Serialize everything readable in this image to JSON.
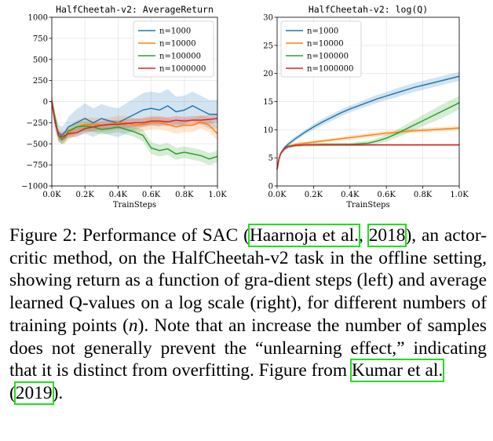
{
  "chart_data": [
    {
      "type": "line",
      "title": "HalfCheetah-v2: AverageReturn",
      "xlabel": "TrainSteps",
      "ylabel": "",
      "xlim": [
        0,
        1000
      ],
      "ylim": [
        -1000,
        1000
      ],
      "xticks": [
        0,
        200,
        400,
        600,
        800,
        1000
      ],
      "xtick_labels": [
        "0.0K",
        "0.2K",
        "0.4K",
        "0.6K",
        "0.8K",
        "1.0K"
      ],
      "yticks": [
        -1000,
        -750,
        -500,
        -250,
        0,
        250,
        500,
        750,
        1000
      ],
      "ytick_labels": [
        "−1000",
        "−750",
        "−500",
        "−250",
        "0",
        "250",
        "500",
        "750",
        "1000"
      ],
      "grid": true,
      "legend_position": "top-right",
      "x": [
        0,
        20,
        40,
        60,
        80,
        100,
        150,
        200,
        250,
        300,
        350,
        400,
        450,
        500,
        550,
        600,
        650,
        700,
        750,
        800,
        850,
        900,
        950,
        1000
      ],
      "series": [
        {
          "name": "n=1000",
          "color": "#1f77b4",
          "values": [
            0,
            -250,
            -370,
            -400,
            -360,
            -300,
            -250,
            -200,
            -250,
            -200,
            -230,
            -250,
            -200,
            -150,
            -100,
            -80,
            -100,
            -50,
            -120,
            -100,
            -50,
            -100,
            -150,
            -150
          ],
          "band": [
            100,
            100,
            100,
            100,
            100,
            120,
            160,
            180,
            170,
            170,
            170,
            170,
            180,
            190,
            200,
            200,
            200,
            200,
            180,
            170,
            170,
            170,
            170,
            170
          ]
        },
        {
          "name": "n=10000",
          "color": "#ff7f0e",
          "values": [
            0,
            -200,
            -400,
            -420,
            -420,
            -380,
            -300,
            -270,
            -270,
            -280,
            -270,
            -250,
            -250,
            -280,
            -270,
            -250,
            -250,
            -270,
            -300,
            -280,
            -280,
            -240,
            -280,
            -380
          ],
          "band": [
            80,
            80,
            80,
            80,
            80,
            80,
            80,
            80,
            80,
            80,
            80,
            80,
            80,
            80,
            80,
            80,
            80,
            80,
            80,
            80,
            80,
            80,
            80,
            80
          ]
        },
        {
          "name": "n=100000",
          "color": "#2ca02c",
          "values": [
            0,
            -200,
            -400,
            -450,
            -420,
            -350,
            -300,
            -290,
            -300,
            -330,
            -320,
            -300,
            -330,
            -360,
            -400,
            -550,
            -580,
            -560,
            -620,
            -600,
            -620,
            -640,
            -680,
            -650
          ],
          "band": [
            60,
            60,
            60,
            60,
            60,
            60,
            60,
            60,
            60,
            60,
            60,
            60,
            60,
            60,
            70,
            70,
            70,
            70,
            70,
            70,
            70,
            70,
            70,
            70
          ]
        },
        {
          "name": "n=1000000",
          "color": "#d62728",
          "values": [
            0,
            -250,
            -400,
            -420,
            -400,
            -380,
            -370,
            -320,
            -300,
            -280,
            -270,
            -270,
            -260,
            -250,
            -250,
            -230,
            -230,
            -240,
            -220,
            -230,
            -220,
            -220,
            -210,
            -200
          ],
          "band": [
            50,
            50,
            50,
            50,
            50,
            50,
            50,
            50,
            50,
            50,
            50,
            50,
            50,
            50,
            50,
            50,
            50,
            50,
            50,
            50,
            50,
            50,
            50,
            50
          ]
        }
      ]
    },
    {
      "type": "line",
      "title": "HalfCheetah-v2: log(Q)",
      "xlabel": "TrainSteps",
      "ylabel": "",
      "xlim": [
        0,
        1000
      ],
      "ylim": [
        0,
        30
      ],
      "xticks": [
        0,
        200,
        400,
        600,
        800,
        1000
      ],
      "xtick_labels": [
        "0.0K",
        "0.2K",
        "0.4K",
        "0.6K",
        "0.8K",
        "1.0K"
      ],
      "yticks": [
        0,
        5,
        10,
        15,
        20,
        25,
        30
      ],
      "ytick_labels": [
        "0",
        "5",
        "10",
        "15",
        "20",
        "25",
        "30"
      ],
      "grid": true,
      "legend_position": "top-left",
      "x": [
        0,
        10,
        20,
        40,
        60,
        80,
        100,
        150,
        200,
        250,
        300,
        350,
        400,
        450,
        500,
        550,
        600,
        650,
        700,
        750,
        800,
        850,
        900,
        950,
        1000
      ],
      "series": [
        {
          "name": "n=1000",
          "color": "#1f77b4",
          "values": [
            3,
            4.8,
            5.8,
            6.8,
            7.4,
            7.9,
            8.4,
            9.5,
            10.5,
            11.4,
            12.2,
            13,
            13.7,
            14.3,
            14.9,
            15.5,
            16,
            16.5,
            17,
            17.5,
            17.9,
            18.3,
            18.7,
            19.1,
            19.5
          ],
          "band": [
            0.4,
            0.4,
            0.4,
            0.4,
            0.4,
            0.4,
            0.4,
            0.4,
            0.5,
            0.6,
            0.6,
            0.6,
            0.6,
            0.6,
            0.7,
            0.7,
            0.7,
            0.8,
            0.8,
            0.8,
            0.8,
            0.8,
            0.8,
            0.8,
            0.8
          ]
        },
        {
          "name": "n=10000",
          "color": "#ff7f0e",
          "values": [
            3,
            4.8,
            5.8,
            6.6,
            7.0,
            7.2,
            7.4,
            7.6,
            7.8,
            8.0,
            8.2,
            8.4,
            8.6,
            8.8,
            9.0,
            9.2,
            9.4,
            9.5,
            9.7,
            9.8,
            9.9,
            10.0,
            10.1,
            10.2,
            10.3
          ],
          "band": [
            0.3,
            0.3,
            0.3,
            0.3,
            0.3,
            0.3,
            0.3,
            0.3,
            0.3,
            0.3,
            0.3,
            0.3,
            0.4,
            0.4,
            0.4,
            0.4,
            0.4,
            0.4,
            0.4,
            0.4,
            0.4,
            0.4,
            0.4,
            0.4,
            0.4
          ]
        },
        {
          "name": "n=100000",
          "color": "#2ca02c",
          "values": [
            3,
            4.8,
            5.8,
            6.6,
            7.0,
            7.1,
            7.2,
            7.3,
            7.35,
            7.4,
            7.4,
            7.4,
            7.4,
            7.5,
            7.6,
            8.0,
            8.5,
            9.2,
            10.0,
            10.8,
            11.6,
            12.4,
            13.2,
            14.0,
            14.8
          ],
          "band": [
            0.3,
            0.3,
            0.3,
            0.3,
            0.3,
            0.3,
            0.3,
            0.3,
            0.3,
            0.3,
            0.3,
            0.3,
            0.3,
            0.4,
            0.4,
            0.5,
            0.6,
            0.7,
            0.8,
            0.9,
            1.0,
            1.1,
            1.2,
            1.2,
            1.2
          ]
        },
        {
          "name": "n=1000000",
          "color": "#d62728",
          "values": [
            3,
            4.8,
            5.8,
            6.6,
            7.0,
            7.1,
            7.2,
            7.3,
            7.3,
            7.3,
            7.3,
            7.3,
            7.3,
            7.3,
            7.3,
            7.3,
            7.3,
            7.3,
            7.3,
            7.3,
            7.3,
            7.3,
            7.3,
            7.3,
            7.3
          ],
          "band": [
            0.2,
            0.2,
            0.2,
            0.2,
            0.2,
            0.2,
            0.2,
            0.2,
            0.2,
            0.2,
            0.2,
            0.2,
            0.2,
            0.2,
            0.2,
            0.2,
            0.2,
            0.2,
            0.2,
            0.2,
            0.2,
            0.2,
            0.2,
            0.2,
            0.2
          ]
        }
      ]
    }
  ],
  "caption": {
    "part1": "Figure 2: Performance of SAC (",
    "cite1_author": "Haarnoja et al.",
    "part2": ", ",
    "cite1_year": "2018",
    "part3": "), an actor-critic method, on the HalfCheetah-v2 task in the offline setting, showing return as a function of gra-dient steps (left) and average learned Q-values on a log scale (right), for different numbers of training points (",
    "var_n": "n",
    "part4": "). Note that an increase the number of samples does not generally prevent the “unlearning effect,” indicating that it is distinct from overfitting. Figure from ",
    "cite2_author": "Kumar et al.",
    "part5": "\n(",
    "cite2_year": "2019",
    "part6": ")."
  },
  "colors": {
    "citation_box": "#22dd22",
    "grid": "#e6e6e6"
  }
}
